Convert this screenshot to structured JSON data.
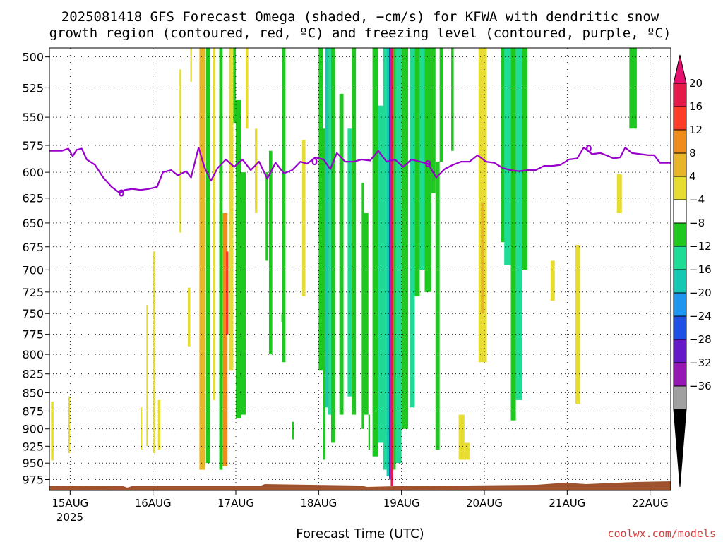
{
  "title_line1": "2025081418 GFS Forecast Omega (shaded, −cm/s) for KFWA with dendritic snow",
  "title_line2": "growth region (contoured, red, ºC) and freezing level (contoured, purple, ºC)",
  "credit": "coolwx.com/models",
  "chart_data": {
    "type": "heatmap",
    "title": "2025081418 GFS Forecast Omega (shaded, −cm/s) for KFWA with dendritic snow growth region (contoured, red, ºC) and freezing level (contoured, purple, ºC)",
    "xlabel": "Forecast Time (UTC)",
    "ylabel": "",
    "x_ticks": [
      "15AUG",
      "16AUG",
      "17AUG",
      "18AUG",
      "19AUG",
      "20AUG",
      "21AUG",
      "22AUG"
    ],
    "x_year_label": "2025",
    "x_range_days": [
      14.75,
      22.25
    ],
    "y_ticks": [
      500,
      525,
      550,
      575,
      600,
      625,
      650,
      675,
      700,
      725,
      750,
      775,
      800,
      825,
      850,
      875,
      900,
      925,
      950,
      975
    ],
    "y_scale": "log-pressure",
    "y_range_hpa": [
      493,
      992
    ],
    "grid": true,
    "colorbar": {
      "ticks": [
        "20",
        "16",
        "12",
        "8",
        "4",
        "−4",
        "−8",
        "−12",
        "−16",
        "−20",
        "−24",
        "−28",
        "−32",
        "−36"
      ],
      "colors": [
        "#e6194b",
        "#ff3c28",
        "#f08c1e",
        "#e8b428",
        "#e6dc32",
        "#ffffff",
        "#1ec81e",
        "#1edc96",
        "#14c8b4",
        "#1e96f0",
        "#1e50e6",
        "#6418c8",
        "#9618b4",
        "#a0a0a0"
      ],
      "top_arrow_color": "#e6106e",
      "bottom_arrow_color": "#000000"
    },
    "freezing_level_label": "0",
    "freezing_level_hpa": [
      [
        14.75,
        580
      ],
      [
        14.9,
        580
      ],
      [
        14.98,
        578
      ],
      [
        15.03,
        585
      ],
      [
        15.08,
        579
      ],
      [
        15.14,
        578
      ],
      [
        15.2,
        588
      ],
      [
        15.3,
        593
      ],
      [
        15.4,
        605
      ],
      [
        15.5,
        614
      ],
      [
        15.6,
        620
      ],
      [
        15.66,
        617
      ],
      [
        15.75,
        616
      ],
      [
        15.85,
        617
      ],
      [
        15.95,
        616
      ],
      [
        16.05,
        614
      ],
      [
        16.12,
        600
      ],
      [
        16.22,
        598
      ],
      [
        16.3,
        603
      ],
      [
        16.4,
        599
      ],
      [
        16.46,
        605
      ],
      [
        16.55,
        577
      ],
      [
        16.62,
        595
      ],
      [
        16.7,
        608
      ],
      [
        16.78,
        596
      ],
      [
        16.88,
        588
      ],
      [
        16.98,
        595
      ],
      [
        17.08,
        588
      ],
      [
        17.18,
        598
      ],
      [
        17.28,
        590
      ],
      [
        17.38,
        606
      ],
      [
        17.48,
        591
      ],
      [
        17.58,
        601
      ],
      [
        17.68,
        598
      ],
      [
        17.78,
        590
      ],
      [
        17.86,
        592
      ],
      [
        17.96,
        586
      ],
      [
        18.06,
        588
      ],
      [
        18.14,
        597
      ],
      [
        18.22,
        582
      ],
      [
        18.32,
        590
      ],
      [
        18.42,
        590
      ],
      [
        18.52,
        588
      ],
      [
        18.62,
        589
      ],
      [
        18.72,
        580
      ],
      [
        18.82,
        590
      ],
      [
        18.92,
        588
      ],
      [
        19.02,
        595
      ],
      [
        19.12,
        588
      ],
      [
        19.22,
        590
      ],
      [
        19.32,
        592
      ],
      [
        19.42,
        605
      ],
      [
        19.52,
        597
      ],
      [
        19.62,
        593
      ],
      [
        19.72,
        590
      ],
      [
        19.82,
        590
      ],
      [
        19.92,
        584
      ],
      [
        20.02,
        590
      ],
      [
        20.12,
        591
      ],
      [
        20.22,
        596
      ],
      [
        20.32,
        598
      ],
      [
        20.42,
        599
      ],
      [
        20.52,
        598
      ],
      [
        20.62,
        598
      ],
      [
        20.72,
        594
      ],
      [
        20.82,
        594
      ],
      [
        20.92,
        593
      ],
      [
        21.02,
        588
      ],
      [
        21.12,
        587
      ],
      [
        21.2,
        577
      ],
      [
        21.3,
        583
      ],
      [
        21.4,
        582
      ],
      [
        21.5,
        585
      ],
      [
        21.56,
        587
      ],
      [
        21.64,
        586
      ],
      [
        21.7,
        577
      ],
      [
        21.78,
        582
      ],
      [
        21.88,
        583
      ],
      [
        21.98,
        584
      ],
      [
        22.05,
        584
      ],
      [
        22.12,
        591
      ],
      [
        22.25,
        591
      ]
    ],
    "freezing_label_positions": [
      [
        15.62,
        620
      ],
      [
        17.95,
        590
      ],
      [
        19.32,
        592
      ],
      [
        21.26,
        578
      ]
    ],
    "omega_bands": [
      {
        "x0": 14.77,
        "x1": 14.8,
        "p_top": 862,
        "p_bot": 946,
        "value": 4
      },
      {
        "x0": 14.98,
        "x1": 15.0,
        "p_top": 855,
        "p_bot": 935,
        "value": 4
      },
      {
        "x0": 15.85,
        "x1": 15.87,
        "p_top": 870,
        "p_bot": 930,
        "value": 4
      },
      {
        "x0": 15.92,
        "x1": 15.94,
        "p_top": 740,
        "p_bot": 925,
        "value": 4
      },
      {
        "x0": 16.0,
        "x1": 16.03,
        "p_top": 680,
        "p_bot": 935,
        "value": 4
      },
      {
        "x0": 16.06,
        "x1": 16.09,
        "p_top": 860,
        "p_bot": 930,
        "value": 4
      },
      {
        "x0": 16.32,
        "x1": 16.34,
        "p_top": 510,
        "p_bot": 660,
        "value": 4
      },
      {
        "x0": 16.42,
        "x1": 16.45,
        "p_top": 720,
        "p_bot": 790,
        "value": 4
      },
      {
        "x0": 16.45,
        "x1": 16.47,
        "p_top": 493,
        "p_bot": 520,
        "value": 4
      },
      {
        "x0": 16.56,
        "x1": 16.63,
        "p_top": 493,
        "p_bot": 960,
        "value": 8
      },
      {
        "x0": 16.64,
        "x1": 16.69,
        "p_top": 493,
        "p_bot": 950,
        "value": -8
      },
      {
        "x0": 16.72,
        "x1": 16.75,
        "p_top": 493,
        "p_bot": 860,
        "value": 4
      },
      {
        "x0": 16.8,
        "x1": 16.84,
        "p_top": 493,
        "p_bot": 960,
        "value": -8
      },
      {
        "x0": 16.84,
        "x1": 16.9,
        "p_top": 640,
        "p_bot": 955,
        "value": 12
      },
      {
        "x0": 16.88,
        "x1": 16.91,
        "p_top": 680,
        "p_bot": 775,
        "value": 16
      },
      {
        "x0": 16.92,
        "x1": 16.97,
        "p_top": 493,
        "p_bot": 820,
        "value": 4
      },
      {
        "x0": 16.97,
        "x1": 17.0,
        "p_top": 493,
        "p_bot": 555,
        "value": -8
      },
      {
        "x0": 17.0,
        "x1": 17.06,
        "p_top": 535,
        "p_bot": 885,
        "value": -8
      },
      {
        "x0": 17.06,
        "x1": 17.12,
        "p_top": 600,
        "p_bot": 880,
        "value": -8
      },
      {
        "x0": 17.12,
        "x1": 17.15,
        "p_top": 493,
        "p_bot": 560,
        "value": 4
      },
      {
        "x0": 17.23,
        "x1": 17.26,
        "p_top": 560,
        "p_bot": 640,
        "value": 4
      },
      {
        "x0": 17.36,
        "x1": 17.39,
        "p_top": 600,
        "p_bot": 690,
        "value": -8
      },
      {
        "x0": 17.4,
        "x1": 17.44,
        "p_top": 580,
        "p_bot": 800,
        "value": -8
      },
      {
        "x0": 17.55,
        "x1": 17.57,
        "p_top": 750,
        "p_bot": 760,
        "value": -8
      },
      {
        "x0": 17.56,
        "x1": 17.6,
        "p_top": 493,
        "p_bot": 810,
        "value": -8
      },
      {
        "x0": 17.68,
        "x1": 17.7,
        "p_top": 890,
        "p_bot": 915,
        "value": -8
      },
      {
        "x0": 17.8,
        "x1": 17.84,
        "p_top": 570,
        "p_bot": 730,
        "value": 4
      },
      {
        "x0": 18.0,
        "x1": 18.05,
        "p_top": 493,
        "p_bot": 820,
        "value": -8
      },
      {
        "x0": 18.05,
        "x1": 18.08,
        "p_top": 560,
        "p_bot": 945,
        "value": -8
      },
      {
        "x0": 18.08,
        "x1": 18.11,
        "p_top": 493,
        "p_bot": 870,
        "value": -16
      },
      {
        "x0": 18.11,
        "x1": 18.15,
        "p_top": 493,
        "p_bot": 880,
        "value": -12
      },
      {
        "x0": 18.15,
        "x1": 18.2,
        "p_top": 493,
        "p_bot": 920,
        "value": -8
      },
      {
        "x0": 18.25,
        "x1": 18.3,
        "p_top": 530,
        "p_bot": 880,
        "value": -8
      },
      {
        "x0": 18.35,
        "x1": 18.4,
        "p_top": 560,
        "p_bot": 855,
        "value": -12
      },
      {
        "x0": 18.4,
        "x1": 18.45,
        "p_top": 493,
        "p_bot": 880,
        "value": -8
      },
      {
        "x0": 18.52,
        "x1": 18.55,
        "p_top": 610,
        "p_bot": 900,
        "value": -8
      },
      {
        "x0": 18.55,
        "x1": 18.6,
        "p_top": 640,
        "p_bot": 880,
        "value": -8
      },
      {
        "x0": 18.6,
        "x1": 18.62,
        "p_top": 880,
        "p_bot": 930,
        "value": -8
      },
      {
        "x0": 18.65,
        "x1": 18.72,
        "p_top": 493,
        "p_bot": 940,
        "value": -8
      },
      {
        "x0": 18.72,
        "x1": 18.78,
        "p_top": 540,
        "p_bot": 920,
        "value": -12
      },
      {
        "x0": 18.78,
        "x1": 18.82,
        "p_top": 493,
        "p_bot": 960,
        "value": -12
      },
      {
        "x0": 18.82,
        "x1": 18.85,
        "p_top": 493,
        "p_bot": 970,
        "value": -16
      },
      {
        "x0": 18.85,
        "x1": 18.87,
        "p_top": 493,
        "p_bot": 975,
        "value": -28
      },
      {
        "x0": 18.87,
        "x1": 18.9,
        "p_top": 493,
        "p_bot": 985,
        "value": 20
      },
      {
        "x0": 18.9,
        "x1": 18.93,
        "p_top": 493,
        "p_bot": 960,
        "value": -8
      },
      {
        "x0": 18.93,
        "x1": 19.0,
        "p_top": 493,
        "p_bot": 950,
        "value": -12
      },
      {
        "x0": 19.0,
        "x1": 19.08,
        "p_top": 493,
        "p_bot": 900,
        "value": -8
      },
      {
        "x0": 19.1,
        "x1": 19.16,
        "p_top": 493,
        "p_bot": 870,
        "value": -12
      },
      {
        "x0": 19.16,
        "x1": 19.22,
        "p_top": 493,
        "p_bot": 730,
        "value": -8
      },
      {
        "x0": 19.22,
        "x1": 19.28,
        "p_top": 493,
        "p_bot": 700,
        "value": -12
      },
      {
        "x0": 19.28,
        "x1": 19.36,
        "p_top": 493,
        "p_bot": 725,
        "value": -8
      },
      {
        "x0": 19.36,
        "x1": 19.41,
        "p_top": 493,
        "p_bot": 620,
        "value": -8
      },
      {
        "x0": 19.41,
        "x1": 19.46,
        "p_top": 590,
        "p_bot": 930,
        "value": -8
      },
      {
        "x0": 19.46,
        "x1": 19.5,
        "p_top": 493,
        "p_bot": 590,
        "value": -8
      },
      {
        "x0": 19.6,
        "x1": 19.63,
        "p_top": 493,
        "p_bot": 580,
        "value": -8
      },
      {
        "x0": 19.69,
        "x1": 19.76,
        "p_top": 880,
        "p_bot": 945,
        "value": 4
      },
      {
        "x0": 19.76,
        "x1": 19.82,
        "p_top": 920,
        "p_bot": 945,
        "value": 4
      },
      {
        "x0": 19.93,
        "x1": 20.03,
        "p_top": 493,
        "p_bot": 810,
        "value": 4
      },
      {
        "x0": 19.96,
        "x1": 20.0,
        "p_top": 630,
        "p_bot": 750,
        "value": 8
      },
      {
        "x0": 20.2,
        "x1": 20.28,
        "p_top": 493,
        "p_bot": 670,
        "value": -8
      },
      {
        "x0": 20.24,
        "x1": 20.32,
        "p_top": 493,
        "p_bot": 695,
        "value": -12
      },
      {
        "x0": 20.32,
        "x1": 20.38,
        "p_top": 493,
        "p_bot": 888,
        "value": -8
      },
      {
        "x0": 20.38,
        "x1": 20.46,
        "p_top": 493,
        "p_bot": 860,
        "value": -12
      },
      {
        "x0": 20.46,
        "x1": 20.52,
        "p_top": 493,
        "p_bot": 700,
        "value": -8
      },
      {
        "x0": 20.8,
        "x1": 20.85,
        "p_top": 690,
        "p_bot": 735,
        "value": 4
      },
      {
        "x0": 21.1,
        "x1": 21.16,
        "p_top": 673,
        "p_bot": 865,
        "value": 4
      },
      {
        "x0": 21.6,
        "x1": 21.66,
        "p_top": 602,
        "p_bot": 640,
        "value": 4
      },
      {
        "x0": 21.75,
        "x1": 21.84,
        "p_top": 493,
        "p_bot": 560,
        "value": -8
      }
    ],
    "terrain_color": "#a0522d"
  }
}
